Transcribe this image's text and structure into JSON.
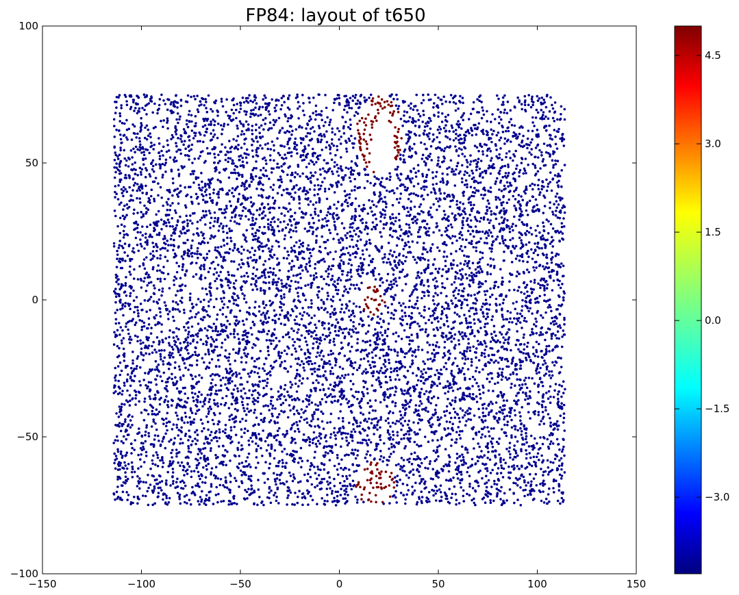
{
  "chart_data": [
    {
      "type": "scatter",
      "title": "FP84: layout of t650",
      "xlabel": "",
      "ylabel": "",
      "xlim": [
        -150,
        150
      ],
      "ylim": [
        -100,
        100
      ],
      "xticks": [
        "−150",
        "−100",
        "−50",
        "0",
        "50",
        "100",
        "150"
      ],
      "xtick_values": [
        -150,
        -100,
        -50,
        0,
        50,
        100,
        150
      ],
      "yticks": [
        "−100",
        "−50",
        "0",
        "50",
        "100"
      ],
      "ytick_values": [
        -100,
        -50,
        0,
        50,
        100
      ],
      "grid": false,
      "point_region": {
        "x": [
          -114,
          114
        ],
        "y": [
          -75,
          75
        ]
      },
      "background_color_value": -4.3,
      "background_color": "#00008f",
      "highlight_color_value": 5.0,
      "highlight_color": "#7f0000",
      "highlight_clusters": [
        {
          "center_x": 20,
          "center_y": 60,
          "rx": 12,
          "ry": 15,
          "hole_center_x": 22,
          "hole_center_y": 55,
          "hole_rx": 6,
          "hole_ry": 12
        },
        {
          "center_x": 17,
          "center_y": 0,
          "rx": 6,
          "ry": 6
        },
        {
          "center_x": 18,
          "center_y": -67,
          "rx": 10,
          "ry": 8
        }
      ]
    },
    {
      "type": "colorbar",
      "colormap": "jet",
      "range": [
        -4.3,
        5.0
      ],
      "tick_values": [
        -3.0,
        -1.5,
        0.0,
        1.5,
        3.0,
        4.5
      ],
      "tick_labels": [
        "−3.0",
        "−1.5",
        "0.0",
        "1.5",
        "3.0",
        "4.5"
      ]
    }
  ]
}
